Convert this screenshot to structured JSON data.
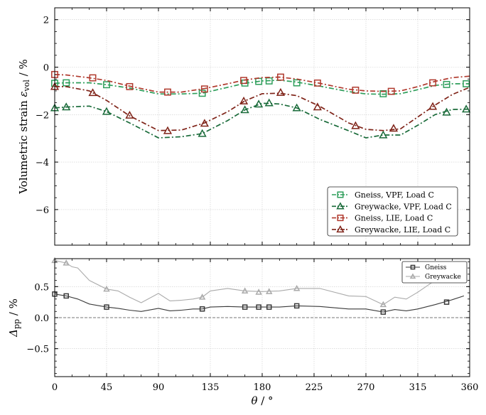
{
  "chart_data": [
    {
      "type": "line",
      "xlabel": "θ / °",
      "ylabel": "Volumetric strain ε_vol / %",
      "ylabel_main": "Volumetric strain ",
      "ylabel_sym": "ε",
      "ylabel_sub": "vol",
      "ylabel_unit": " / %",
      "xlim": [
        0,
        360
      ],
      "ylim": [
        -7.5,
        2.5
      ],
      "xticks": [
        0,
        45,
        90,
        135,
        180,
        225,
        270,
        315,
        360
      ],
      "xtick_labels": [
        "",
        "",
        "",
        "",
        "",
        "",
        "",
        "",
        ""
      ],
      "yticks": [
        2,
        0,
        -2,
        -4,
        -6
      ],
      "ytick_labels": [
        "2",
        "0",
        "−2",
        "−4",
        "−6"
      ],
      "grid": true,
      "legend_position": "lower-right",
      "series": [
        {
          "name": "Gneiss, VPF, Load C",
          "color": "#2e9e5b",
          "marker": "square",
          "dash": "7,3,2,3",
          "x": [
            0,
            10,
            30,
            45,
            65,
            90,
            110,
            128,
            150,
            165,
            180,
            195,
            210,
            230,
            255,
            270,
            285,
            300,
            315,
            330,
            345,
            360
          ],
          "y": [
            -0.68,
            -0.66,
            -0.66,
            -0.74,
            -0.88,
            -1.13,
            -1.13,
            -1.1,
            -0.85,
            -0.68,
            -0.58,
            -0.55,
            -0.63,
            -0.8,
            -1.03,
            -1.13,
            -1.14,
            -1.12,
            -0.95,
            -0.77,
            -0.7,
            -0.7
          ],
          "marker_x": [
            0,
            10,
            45,
            128,
            165,
            177,
            186,
            210,
            285,
            340,
            357
          ],
          "marker_y": [
            -0.68,
            -0.66,
            -0.74,
            -1.1,
            -0.67,
            -0.6,
            -0.58,
            -0.66,
            -1.12,
            -0.73,
            -0.7
          ]
        },
        {
          "name": "Greywacke, VPF, Load C",
          "color": "#1a6b3a",
          "marker": "triangle",
          "dash": "7,3,2,3",
          "x": [
            0,
            10,
            30,
            45,
            65,
            90,
            110,
            128,
            150,
            165,
            180,
            195,
            210,
            230,
            255,
            270,
            285,
            300,
            315,
            330,
            345,
            360
          ],
          "y": [
            -1.72,
            -1.68,
            -1.64,
            -1.87,
            -2.35,
            -2.98,
            -2.93,
            -2.8,
            -2.25,
            -1.8,
            -1.52,
            -1.55,
            -1.72,
            -2.2,
            -2.68,
            -2.98,
            -2.86,
            -2.86,
            -2.45,
            -2.0,
            -1.78,
            -1.77
          ],
          "marker_x": [
            0,
            10,
            45,
            128,
            165,
            177,
            186,
            210,
            285,
            340,
            357
          ],
          "marker_y": [
            -1.72,
            -1.68,
            -1.87,
            -2.8,
            -1.8,
            -1.56,
            -1.51,
            -1.72,
            -2.86,
            -1.9,
            -1.77
          ]
        },
        {
          "name": "Gneiss, LIE, Load C",
          "color": "#b03a2e",
          "marker": "square",
          "dash": "7,3,2,3",
          "x": [
            0,
            10,
            30,
            45,
            65,
            90,
            110,
            130,
            150,
            165,
            180,
            195,
            210,
            230,
            255,
            270,
            285,
            300,
            315,
            330,
            345,
            360
          ],
          "y": [
            -0.31,
            -0.33,
            -0.45,
            -0.56,
            -0.8,
            -1.05,
            -1.05,
            -0.9,
            -0.7,
            -0.54,
            -0.44,
            -0.42,
            -0.5,
            -0.68,
            -0.93,
            -1.0,
            -1.02,
            -1.0,
            -0.82,
            -0.6,
            -0.44,
            -0.38
          ],
          "marker_x": [
            0,
            33,
            65,
            98,
            130,
            164,
            196,
            228,
            261,
            292,
            328
          ],
          "marker_y": [
            -0.31,
            -0.45,
            -0.82,
            -1.05,
            -0.92,
            -0.56,
            -0.42,
            -0.67,
            -0.97,
            -1.02,
            -0.66
          ]
        },
        {
          "name": "Greywacke, LIE, Load C",
          "color": "#7f2318",
          "marker": "triangle",
          "dash": "7,3,2,3",
          "x": [
            0,
            10,
            30,
            45,
            65,
            90,
            110,
            130,
            150,
            165,
            180,
            195,
            210,
            230,
            255,
            270,
            285,
            300,
            315,
            330,
            345,
            360
          ],
          "y": [
            -0.82,
            -0.82,
            -1.0,
            -1.4,
            -2.05,
            -2.67,
            -2.65,
            -2.35,
            -1.88,
            -1.42,
            -1.12,
            -1.1,
            -1.2,
            -1.65,
            -2.35,
            -2.62,
            -2.67,
            -2.6,
            -2.1,
            -1.6,
            -1.15,
            -0.85
          ],
          "marker_x": [
            0,
            33,
            65,
            98,
            130,
            164,
            196,
            228,
            261,
            294,
            328
          ],
          "marker_y": [
            -0.82,
            -1.08,
            -2.03,
            -2.68,
            -2.37,
            -1.43,
            -1.07,
            -1.68,
            -2.47,
            -2.58,
            -1.66
          ]
        }
      ]
    },
    {
      "type": "line",
      "xlabel": "θ / °",
      "xlabel_sym": "θ",
      "xlabel_unit": " / °",
      "ylabel": "Δ_pp / %",
      "ylabel_sym": "Δ",
      "ylabel_sub": "pp",
      "ylabel_unit": " / %",
      "xlim": [
        0,
        360
      ],
      "ylim": [
        -0.95,
        0.95
      ],
      "xticks": [
        0,
        45,
        90,
        135,
        180,
        225,
        270,
        315,
        360
      ],
      "xtick_labels": [
        "0",
        "45",
        "90",
        "135",
        "180",
        "225",
        "270",
        "315",
        "360"
      ],
      "yticks": [
        0.5,
        0.0,
        -0.5
      ],
      "ytick_labels": [
        "0.5",
        "0.0",
        "−0.5"
      ],
      "grid": true,
      "zero_line": true,
      "legend_position": "top-right",
      "series": [
        {
          "name": "Gneiss",
          "color": "#3a3a3a",
          "marker": "square",
          "x": [
            0,
            10,
            20,
            30,
            45,
            55,
            65,
            75,
            90,
            100,
            110,
            120,
            128,
            135,
            150,
            165,
            180,
            195,
            210,
            230,
            255,
            270,
            285,
            295,
            305,
            315,
            330,
            345,
            355
          ],
          "y": [
            0.38,
            0.35,
            0.3,
            0.22,
            0.17,
            0.15,
            0.12,
            0.1,
            0.15,
            0.11,
            0.12,
            0.14,
            0.14,
            0.17,
            0.18,
            0.17,
            0.17,
            0.17,
            0.19,
            0.18,
            0.14,
            0.14,
            0.09,
            0.13,
            0.11,
            0.14,
            0.21,
            0.29,
            0.35
          ],
          "marker_x": [
            0,
            10,
            45,
            128,
            165,
            177,
            186,
            210,
            285,
            340
          ],
          "marker_y": [
            0.38,
            0.35,
            0.17,
            0.14,
            0.17,
            0.17,
            0.17,
            0.19,
            0.09,
            0.25
          ]
        },
        {
          "name": "Greywacke",
          "color": "#aaaaaa",
          "marker": "triangle",
          "x": [
            0,
            10,
            15,
            20,
            30,
            45,
            55,
            65,
            75,
            90,
            100,
            110,
            120,
            128,
            135,
            150,
            165,
            180,
            195,
            210,
            230,
            255,
            270,
            285,
            295,
            305,
            315,
            330,
            345
          ],
          "y": [
            0.92,
            0.88,
            0.82,
            0.8,
            0.6,
            0.46,
            0.43,
            0.33,
            0.24,
            0.39,
            0.27,
            0.28,
            0.3,
            0.33,
            0.43,
            0.47,
            0.43,
            0.42,
            0.43,
            0.47,
            0.47,
            0.35,
            0.34,
            0.21,
            0.33,
            0.3,
            0.41,
            0.6,
            0.7
          ],
          "marker_x": [
            0,
            10,
            45,
            128,
            165,
            177,
            186,
            210,
            285
          ],
          "marker_y": [
            0.92,
            0.88,
            0.46,
            0.33,
            0.43,
            0.41,
            0.42,
            0.47,
            0.21
          ]
        }
      ]
    }
  ]
}
